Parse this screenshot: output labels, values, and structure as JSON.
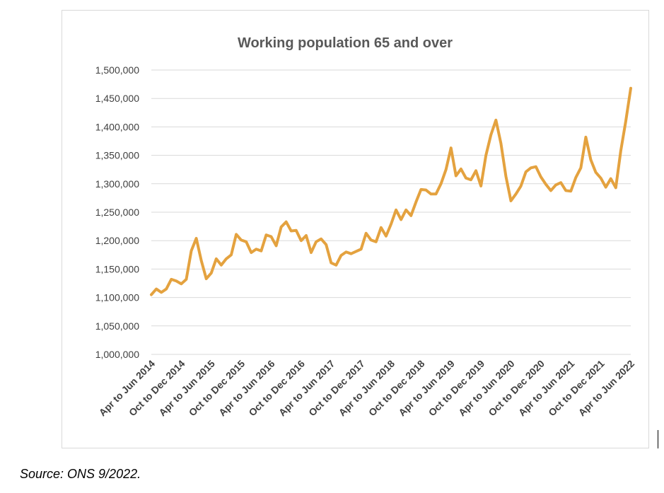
{
  "source_note": "Source: ONS 9/2022.",
  "chart_data": {
    "type": "line",
    "title": "Working population 65 and over",
    "xlabel": "",
    "ylabel": "",
    "ylim": [
      1000000,
      1500000
    ],
    "y_ticks": [
      1000000,
      1050000,
      1100000,
      1150000,
      1200000,
      1250000,
      1300000,
      1350000,
      1400000,
      1450000,
      1500000
    ],
    "y_tick_labels": [
      "1,000,000",
      "1,050,000",
      "1,100,000",
      "1,150,000",
      "1,200,000",
      "1,250,000",
      "1,300,000",
      "1,350,000",
      "1,400,000",
      "1,450,000",
      "1,500,000"
    ],
    "x_tick_labels": [
      "Apr to Jun 2014",
      "Oct to Dec 2014",
      "Apr to Jun 2015",
      "Oct to Dec 2015",
      "Apr to Jun 2016",
      "Oct to Dec 2016",
      "Apr to Jun 2017",
      "Oct to Dec 2017",
      "Apr to Jun 2018",
      "Oct to Dec 2018",
      "Apr to Jun 2019",
      "Oct to Dec 2019",
      "Apr to Jun 2020",
      "Oct to Dec 2020",
      "Apr to Jun 2021",
      "Oct to Dec 2021",
      "Apr to Jun 2022"
    ],
    "grid": true,
    "legend": "none",
    "line_color": "#E4A23F",
    "series": [
      {
        "values": [
          1105000,
          1115000,
          1109000,
          1115000,
          1132000,
          1129000,
          1124000,
          1132000,
          1182000,
          1204000,
          1165000,
          1133000,
          1143000,
          1168000,
          1157000,
          1168000,
          1175000,
          1211000,
          1201000,
          1198000,
          1179000,
          1185000,
          1182000,
          1210000,
          1207000,
          1191000,
          1224000,
          1233000,
          1217000,
          1218000,
          1200000,
          1209000,
          1179000,
          1198000,
          1203000,
          1193000,
          1161000,
          1157000,
          1174000,
          1180000,
          1177000,
          1181000,
          1185000,
          1213000,
          1201000,
          1198000,
          1223000,
          1208000,
          1229000,
          1254000,
          1237000,
          1254000,
          1244000,
          1268000,
          1290000,
          1289000,
          1282000,
          1282000,
          1300000,
          1325000,
          1363000,
          1314000,
          1326000,
          1310000,
          1307000,
          1323000,
          1296000,
          1350000,
          1386000,
          1412000,
          1371000,
          1313000,
          1270000,
          1282000,
          1296000,
          1321000,
          1328000,
          1330000,
          1312000,
          1299000,
          1288000,
          1298000,
          1302000,
          1288000,
          1287000,
          1311000,
          1328000,
          1382000,
          1342000,
          1320000,
          1310000,
          1294000,
          1309000,
          1293000,
          1358000,
          1410000,
          1468000
        ]
      }
    ]
  }
}
